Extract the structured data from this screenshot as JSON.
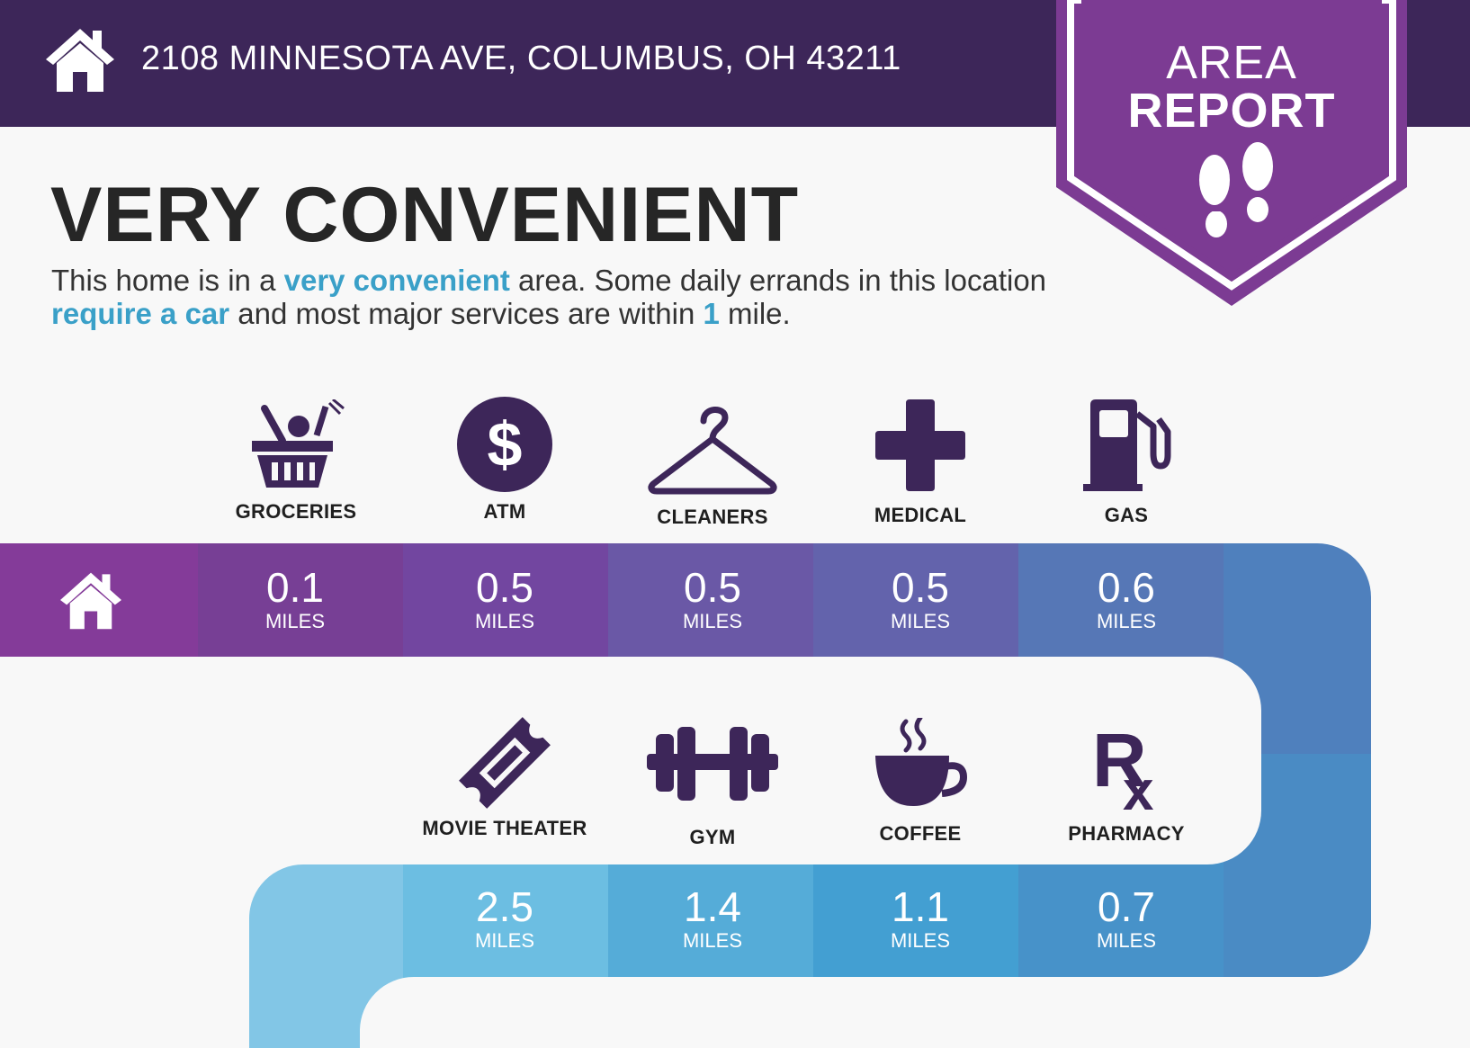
{
  "header": {
    "address": "2108 MINNESOTA AVE, COLUMBUS, OH 43211"
  },
  "badge": {
    "line1": "AREA",
    "line2": "REPORT"
  },
  "headline": "VERY CONVENIENT",
  "summary": {
    "p1": "This home is in a ",
    "h1": "very convenient",
    "p2": " area. Some daily errands in this location ",
    "h2": "require a car",
    "p3": " and most major services are within ",
    "h3": "1",
    "p4": " mile."
  },
  "row1": [
    {
      "label": "GROCERIES",
      "distance": "0.1",
      "unit": "MILES",
      "icon": "grocery-basket-icon",
      "color": "#773f95"
    },
    {
      "label": "ATM",
      "distance": "0.5",
      "unit": "MILES",
      "icon": "dollar-icon",
      "color": "#7246a0"
    },
    {
      "label": "CLEANERS",
      "distance": "0.5",
      "unit": "MILES",
      "icon": "hanger-icon",
      "color": "#6a58a6"
    },
    {
      "label": "MEDICAL",
      "distance": "0.5",
      "unit": "MILES",
      "icon": "medical-cross-icon",
      "color": "#6363ac"
    },
    {
      "label": "GAS",
      "distance": "0.6",
      "unit": "MILES",
      "icon": "gas-pump-icon",
      "color": "#5677b6"
    }
  ],
  "row2": [
    {
      "label": "MOVIE THEATER",
      "distance": "2.5",
      "unit": "MILES",
      "icon": "ticket-icon",
      "color": "#6cbee2"
    },
    {
      "label": "GYM",
      "distance": "1.4",
      "unit": "MILES",
      "icon": "dumbbell-icon",
      "color": "#55acd8"
    },
    {
      "label": "COFFEE",
      "distance": "1.1",
      "unit": "MILES",
      "icon": "coffee-cup-icon",
      "color": "#439fd2"
    },
    {
      "label": "PHARMACY",
      "distance": "0.7",
      "unit": "MILES",
      "icon": "rx-icon",
      "color": "#4792c9"
    }
  ],
  "colors": {
    "header": "#3d2659",
    "badge": "#7c3b93",
    "accent": "#3aa0c8",
    "icon": "#3d2659",
    "road_start": "#843b99"
  }
}
